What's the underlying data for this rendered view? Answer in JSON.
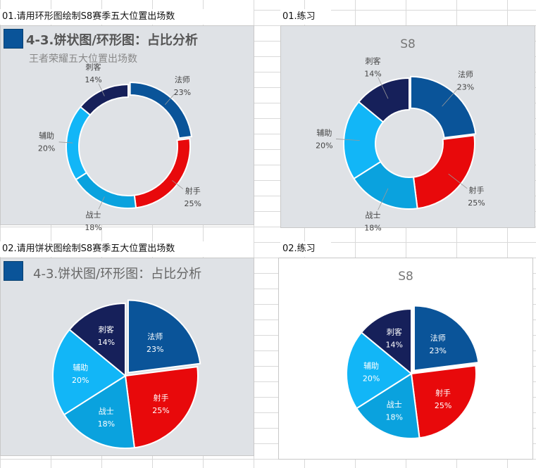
{
  "cells": {
    "c1": "01.请用环形图绘制S8赛季五大位置出场数",
    "c2": "01.练习",
    "c3": "02.请用饼状图绘制S8赛季五大位置出场数",
    "c4": "02.练习"
  },
  "header": {
    "title": "4-3.饼状图/环形图：占比分析",
    "subtitle": "王者荣耀五大位置出场数",
    "accent": "#0a5499"
  },
  "chart_data": [
    {
      "type": "pie",
      "variant": "donut",
      "title": "",
      "categories": [
        "法师",
        "射手",
        "战士",
        "辅助",
        "刺客"
      ],
      "values": [
        23,
        25,
        18,
        20,
        14
      ],
      "labels": [
        "23%",
        "25%",
        "18%",
        "20%",
        "14%"
      ],
      "colors": [
        "#0a5499",
        "#e8090b",
        "#0aa2de",
        "#12b6f7",
        "#16205a"
      ]
    },
    {
      "type": "pie",
      "variant": "donut",
      "title": "S8",
      "categories": [
        "法师",
        "射手",
        "战士",
        "辅助",
        "刺客"
      ],
      "values": [
        23,
        25,
        18,
        20,
        14
      ],
      "labels": [
        "23%",
        "25%",
        "18%",
        "20%",
        "14%"
      ],
      "colors": [
        "#0a5499",
        "#e8090b",
        "#0aa2de",
        "#12b6f7",
        "#16205a"
      ]
    },
    {
      "type": "pie",
      "title": "",
      "categories": [
        "法师",
        "射手",
        "战士",
        "辅助",
        "刺客"
      ],
      "values": [
        23,
        25,
        18,
        20,
        14
      ],
      "labels": [
        "23%",
        "25%",
        "18%",
        "20%",
        "14%"
      ],
      "colors": [
        "#0a5499",
        "#e8090b",
        "#0aa2de",
        "#12b6f7",
        "#16205a"
      ]
    },
    {
      "type": "pie",
      "title": "S8",
      "categories": [
        "法师",
        "射手",
        "战士",
        "辅助",
        "刺客"
      ],
      "values": [
        23,
        25,
        18,
        20,
        14
      ],
      "labels": [
        "23%",
        "25%",
        "18%",
        "20%",
        "14%"
      ],
      "colors": [
        "#0a5499",
        "#e8090b",
        "#0aa2de",
        "#12b6f7",
        "#16205a"
      ]
    }
  ]
}
